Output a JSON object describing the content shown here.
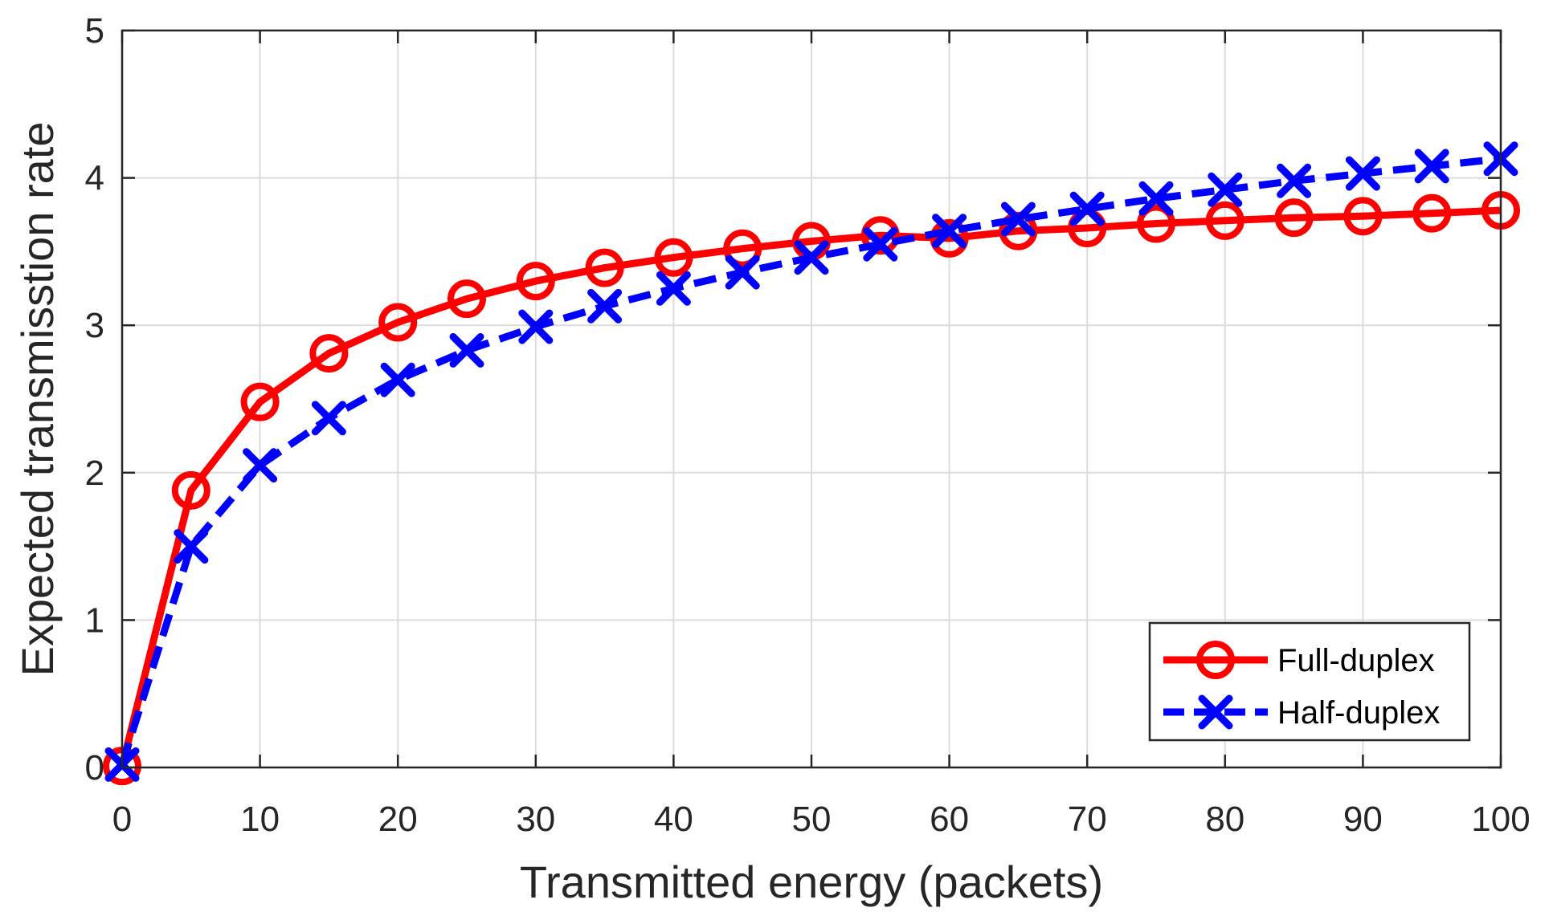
{
  "chart_data": {
    "type": "line",
    "title": "",
    "xlabel": "Transmitted energy (packets)",
    "ylabel": "Expected transmisstion rate",
    "xlim": [
      0,
      100
    ],
    "ylim": [
      0,
      5
    ],
    "xticks": [
      0,
      10,
      20,
      30,
      40,
      50,
      60,
      70,
      80,
      90,
      100
    ],
    "yticks": [
      0,
      1,
      2,
      3,
      4,
      5
    ],
    "xtick_labels": [
      "0",
      "10",
      "20",
      "30",
      "40",
      "50",
      "60",
      "70",
      "80",
      "90",
      "100"
    ],
    "ytick_labels": [
      "0",
      "1",
      "2",
      "3",
      "4",
      "5"
    ],
    "grid": true,
    "legend_position": "bottom-right",
    "x": [
      0,
      5,
      10,
      15,
      20,
      25,
      30,
      35,
      40,
      45,
      50,
      55,
      60,
      65,
      70,
      75,
      80,
      85,
      90,
      95,
      100
    ],
    "series": [
      {
        "name": "Full-duplex",
        "color": "#ff0000",
        "line_style": "solid",
        "marker": "circle",
        "values": [
          0.01,
          1.88,
          2.48,
          2.81,
          3.02,
          3.18,
          3.3,
          3.39,
          3.46,
          3.52,
          3.57,
          3.61,
          3.59,
          3.64,
          3.66,
          3.69,
          3.71,
          3.73,
          3.74,
          3.76,
          3.78
        ]
      },
      {
        "name": "Half-duplex",
        "color": "#0000ff",
        "line_style": "dashed",
        "marker": "x",
        "values": [
          0.02,
          1.5,
          2.05,
          2.37,
          2.63,
          2.83,
          2.99,
          3.13,
          3.25,
          3.36,
          3.46,
          3.55,
          3.64,
          3.72,
          3.79,
          3.86,
          3.92,
          3.98,
          4.03,
          4.08,
          4.13
        ]
      }
    ]
  }
}
